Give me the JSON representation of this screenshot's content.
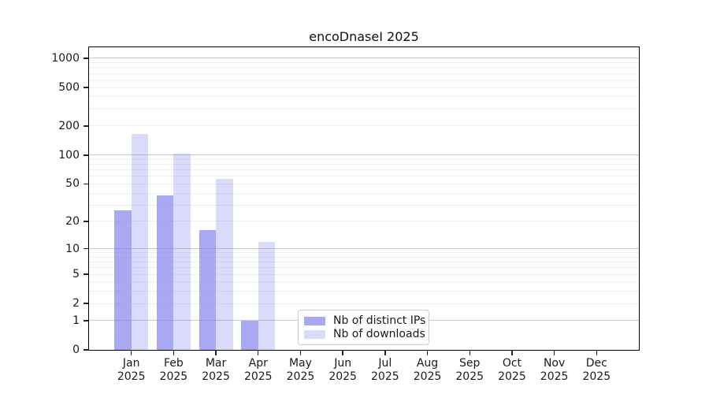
{
  "title": "encoDnaseI 2025",
  "legend": {
    "items": [
      {
        "label": "Nb of distinct IPs",
        "color": "rgba(121,121,237,0.65)"
      },
      {
        "label": "Nb of downloads",
        "color": "rgba(121,121,237,0.28)"
      }
    ]
  },
  "chart_data": {
    "type": "bar",
    "title": "encoDnaseI 2025",
    "categories": [
      "Jan",
      "Feb",
      "Mar",
      "Apr",
      "May",
      "Jun",
      "Jul",
      "Aug",
      "Sep",
      "Oct",
      "Nov",
      "Dec"
    ],
    "year_label": "2025",
    "series": [
      {
        "name": "Nb of distinct IPs",
        "color": "rgba(121,121,237,0.65)",
        "values": [
          26,
          38,
          16,
          1,
          0,
          0,
          0,
          0,
          0,
          0,
          0,
          0
        ]
      },
      {
        "name": "Nb of downloads",
        "color": "rgba(121,121,237,0.28)",
        "values": [
          166,
          103,
          56,
          12,
          0,
          0,
          0,
          0,
          0,
          0,
          0,
          0
        ]
      }
    ],
    "yticks": [
      0,
      1,
      2,
      5,
      10,
      20,
      50,
      100,
      200,
      500,
      1000
    ],
    "scale": "log1p",
    "ylim": [
      0,
      1300
    ],
    "grid": "horizontal",
    "legend_position": "lower-center",
    "colors": {
      "bar_base": "#7979ed",
      "grid_major": "#c9c9c9",
      "grid_minor": "#efefef",
      "spine": "#000000",
      "text": "#1a1a1a"
    }
  }
}
